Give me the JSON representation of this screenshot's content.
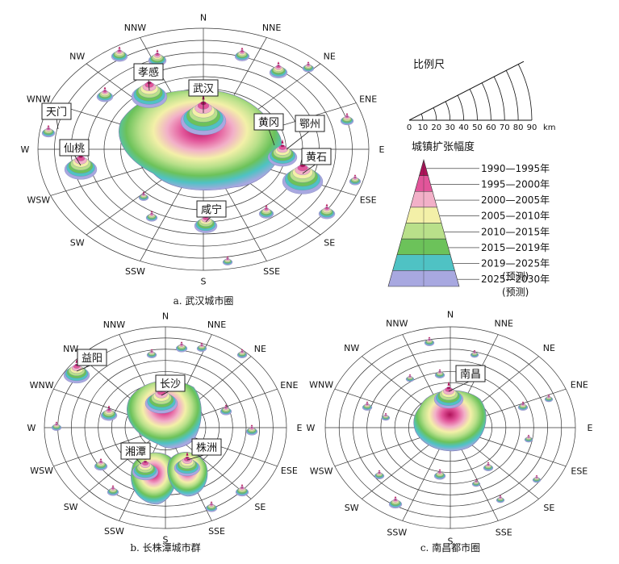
{
  "compass": [
    "N",
    "NNE",
    "NE",
    "ENE",
    "E",
    "ESE",
    "SE",
    "SSE",
    "S",
    "SSW",
    "SW",
    "WSW",
    "W",
    "WNW",
    "NW",
    "NNW"
  ],
  "panels": {
    "a": {
      "caption": "a. 武汉城市圈",
      "cities": [
        "武汉",
        "孝感",
        "天门",
        "仙桃",
        "黄冈",
        "鄂州",
        "黄石",
        "咸宁"
      ]
    },
    "b": {
      "caption": "b. 长株潭城市群",
      "cities": [
        "益阳",
        "长沙",
        "湘潭",
        "株洲"
      ]
    },
    "c": {
      "caption": "c. 南昌都市圈",
      "cities": [
        "南昌"
      ]
    }
  },
  "scale": {
    "title": "比例尺",
    "ticks": [
      "0",
      "10",
      "20",
      "30",
      "40",
      "50",
      "60",
      "70",
      "80",
      "90"
    ],
    "unit": "km"
  },
  "legend": {
    "title": "城镇扩张幅度",
    "periods": [
      {
        "label": "1990—1995年",
        "color": "#b0125a"
      },
      {
        "label": "1995—2000年",
        "color": "#e2559a"
      },
      {
        "label": "2000—2005年",
        "color": "#f2b0c8"
      },
      {
        "label": "2005—2010年",
        "color": "#f3f0a8"
      },
      {
        "label": "2010—2015年",
        "color": "#b9e08a"
      },
      {
        "label": "2015—2019年",
        "color": "#6cc25a"
      },
      {
        "label": "2019—2025年",
        "note": "(预测)",
        "color": "#4fc2c4"
      },
      {
        "label": "2025—2030年",
        "note": "(预测)",
        "color": "#a8a8e0"
      }
    ]
  }
}
